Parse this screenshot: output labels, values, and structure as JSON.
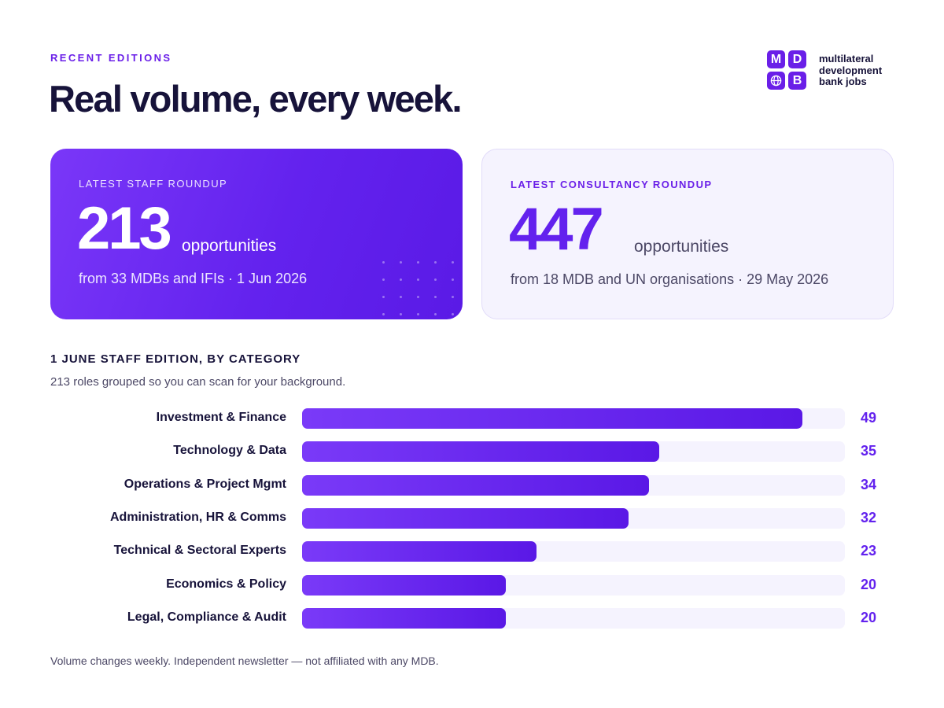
{
  "header": {
    "eyebrow": "RECENT EDITIONS",
    "headline": "Real volume, every week."
  },
  "logo": {
    "tiles": [
      "M",
      "D",
      "",
      "B"
    ],
    "icon": "globe-icon",
    "line1": "multilateral",
    "line2": "development",
    "line3": "bank jobs"
  },
  "cards": {
    "staff": {
      "label": "LATEST STAFF ROUNDUP",
      "number": "213",
      "unit": "opportunities",
      "sub": "from 33 MDBs and IFIs · 1 Jun 2026"
    },
    "consultancy": {
      "label": "LATEST CONSULTANCY ROUNDUP",
      "number": "447",
      "unit": "opportunities",
      "sub": "from 18 MDB and UN organisations · 29 May 2026"
    }
  },
  "section": {
    "title": "1 JUNE STAFF EDITION, BY CATEGORY",
    "subtitle": "213 roles grouped so you can scan for your background."
  },
  "chart_data": {
    "type": "bar",
    "orientation": "horizontal",
    "categories": [
      "Investment & Finance",
      "Technology & Data",
      "Operations & Project Mgmt",
      "Administration, HR & Comms",
      "Technical & Sectoral Experts",
      "Economics & Policy",
      "Legal, Compliance & Audit"
    ],
    "values": [
      49,
      35,
      34,
      32,
      23,
      20,
      20
    ],
    "xlim": [
      0,
      53.2
    ],
    "grid": false,
    "colors": {
      "bar_start": "#7a3af8",
      "bar_end": "#5a18e6",
      "track": "#f5f3fe",
      "value": "#6322ee"
    }
  },
  "footnote": "Volume changes weekly. Independent newsletter — not affiliated with any MDB.",
  "colors": {
    "accent": "#6a1fe8",
    "ink": "#17133a",
    "muted": "#4c4866"
  }
}
